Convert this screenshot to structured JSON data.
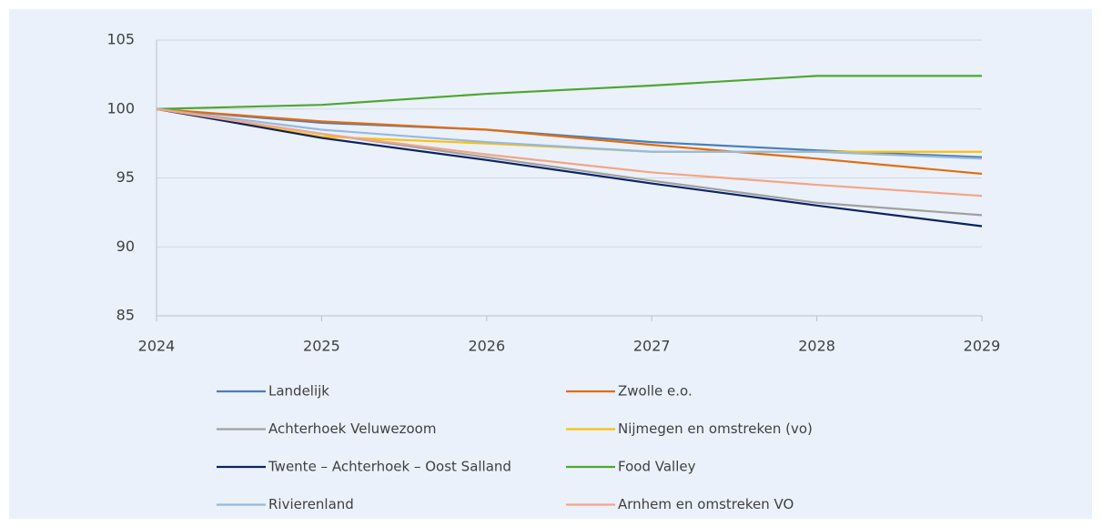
{
  "chart_data": {
    "type": "line",
    "categories": [
      "2024",
      "2025",
      "2026",
      "2027",
      "2028",
      "2029"
    ],
    "series": [
      {
        "name": "Landelijk",
        "color": "#4a7ebb",
        "values": [
          100,
          99.0,
          98.5,
          97.6,
          97.0,
          96.5
        ]
      },
      {
        "name": "Zwolle e.o.",
        "color": "#e46c0a",
        "values": [
          100,
          99.1,
          98.5,
          97.4,
          96.4,
          95.3
        ]
      },
      {
        "name": "Achterhoek Veluwezoom",
        "color": "#a0a0a0",
        "values": [
          100,
          98.2,
          96.5,
          94.8,
          93.2,
          92.3
        ]
      },
      {
        "name": "Nijmegen en omstreken (vo)",
        "color": "#ffc000",
        "values": [
          100,
          98.0,
          97.5,
          96.9,
          96.9,
          96.9
        ]
      },
      {
        "name": "Twente – Achterhoek – Oost Salland",
        "color": "#0b2366",
        "values": [
          100,
          97.9,
          96.3,
          94.6,
          93.0,
          91.5
        ]
      },
      {
        "name": "Food Valley",
        "color": "#4ea72e",
        "values": [
          100,
          100.3,
          101.1,
          101.7,
          102.4,
          102.4
        ]
      },
      {
        "name": "Rivierenland",
        "color": "#95b9e0",
        "values": [
          100,
          98.5,
          97.6,
          96.9,
          96.9,
          96.4
        ]
      },
      {
        "name": "Arnhem en omstreken VO",
        "color": "#f4a582",
        "values": [
          100,
          98.2,
          96.7,
          95.4,
          94.5,
          93.7
        ]
      }
    ],
    "ylim": [
      85,
      105
    ],
    "yticks": [
      85,
      90,
      95,
      100,
      105
    ],
    "grid": true
  }
}
